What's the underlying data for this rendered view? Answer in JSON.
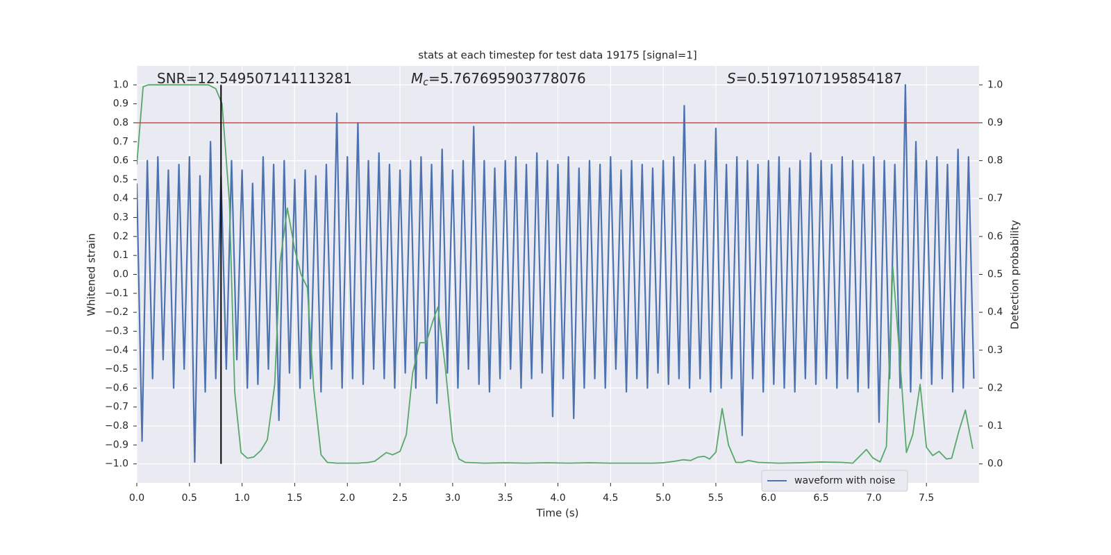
{
  "chart_data": {
    "type": "line",
    "title": "stats at each timestep for test data 19175 [signal=1]",
    "xlabel": "Time (s)",
    "ylabel": "Whitened strain",
    "y2label": "Detection probability",
    "xlim": [
      0,
      8.0
    ],
    "ylim": [
      -1.1,
      1.1
    ],
    "y2lim": [
      -0.05,
      1.05
    ],
    "xticks": [
      {
        "value": 0,
        "label": "0.0"
      },
      0.5,
      {
        "value": 1,
        "label": "1.0"
      },
      1.5,
      {
        "value": 2,
        "label": "2.0"
      },
      2.5,
      {
        "value": 3,
        "label": "3.0"
      },
      3.5,
      {
        "value": 4,
        "label": "4.0"
      },
      4.5,
      {
        "value": 5,
        "label": "5.0"
      },
      5.5,
      {
        "value": 6,
        "label": "6.0"
      },
      6.5,
      {
        "value": 7,
        "label": "7.0"
      },
      7.5
    ],
    "yticks": [
      {
        "value": -1,
        "label": "−1.0"
      },
      {
        "value": -0.9,
        "label": "−0.9"
      },
      {
        "value": -0.8,
        "label": "−0.8"
      },
      {
        "value": -0.7,
        "label": "−0.7"
      },
      {
        "value": -0.6,
        "label": "−0.6"
      },
      {
        "value": -0.5,
        "label": "−0.5"
      },
      {
        "value": -0.4,
        "label": "−0.4"
      },
      {
        "value": -0.3,
        "label": "−0.3"
      },
      {
        "value": -0.2,
        "label": "−0.2"
      },
      {
        "value": -0.1,
        "label": "−0.1"
      },
      {
        "value": 0,
        "label": "0.0"
      },
      0.1,
      0.2,
      0.3,
      0.4,
      0.5,
      0.6,
      0.7,
      0.8,
      0.9,
      {
        "value": 1,
        "label": "1.0"
      }
    ],
    "y2ticks": [
      {
        "value": 0,
        "label": "0.0"
      },
      0.1,
      0.2,
      0.3,
      0.4,
      0.5,
      0.6,
      0.7,
      0.8,
      0.9,
      {
        "value": 1,
        "label": "1.0"
      }
    ],
    "grid": true,
    "legend": "lower right",
    "series": [
      {
        "name": "waveform with noise",
        "color": "#4c72b0",
        "x": [
          0,
          0.05,
          0.1,
          0.15,
          0.2,
          0.25,
          0.3,
          0.35,
          0.4,
          0.45,
          0.5,
          0.55,
          0.6,
          0.65,
          0.7,
          0.75,
          0.8,
          0.85,
          0.9,
          0.95,
          1.0,
          1.05,
          1.1,
          1.15,
          1.2,
          1.25,
          1.3,
          1.35,
          1.4,
          1.45,
          1.5,
          1.55,
          1.6,
          1.65,
          1.7,
          1.75,
          1.8,
          1.85,
          1.9,
          1.95,
          2.0,
          2.05,
          2.1,
          2.15,
          2.2,
          2.25,
          2.3,
          2.35,
          2.4,
          2.45,
          2.5,
          2.55,
          2.6,
          2.65,
          2.7,
          2.75,
          2.8,
          2.85,
          2.9,
          2.95,
          3.0,
          3.05,
          3.1,
          3.15,
          3.2,
          3.25,
          3.3,
          3.35,
          3.4,
          3.45,
          3.5,
          3.55,
          3.6,
          3.65,
          3.7,
          3.75,
          3.8,
          3.85,
          3.9,
          3.95,
          4.0,
          4.05,
          4.1,
          4.15,
          4.2,
          4.25,
          4.3,
          4.35,
          4.4,
          4.45,
          4.5,
          4.55,
          4.6,
          4.65,
          4.7,
          4.75,
          4.8,
          4.85,
          4.9,
          4.95,
          5.0,
          5.05,
          5.1,
          5.15,
          5.2,
          5.25,
          5.3,
          5.35,
          5.4,
          5.45,
          5.5,
          5.55,
          5.6,
          5.65,
          5.7,
          5.75,
          5.8,
          5.85,
          5.9,
          5.95,
          6.0,
          6.05,
          6.1,
          6.15,
          6.2,
          6.25,
          6.3,
          6.35,
          6.4,
          6.45,
          6.5,
          6.55,
          6.6,
          6.65,
          6.7,
          6.75,
          6.8,
          6.85,
          6.9,
          6.95,
          7.0,
          7.05,
          7.1,
          7.15,
          7.2,
          7.25,
          7.3,
          7.35,
          7.4,
          7.45,
          7.5,
          7.55,
          7.6,
          7.65,
          7.7,
          7.75,
          7.8,
          7.85,
          7.9,
          7.95
        ],
        "values": [
          0.48,
          -0.88,
          0.6,
          -0.55,
          0.62,
          -0.45,
          0.55,
          -0.6,
          0.58,
          -0.5,
          0.62,
          -0.99,
          0.52,
          -0.62,
          0.7,
          -0.55,
          0.52,
          -0.5,
          0.6,
          -0.45,
          0.55,
          -0.6,
          0.48,
          -0.58,
          0.62,
          -0.5,
          0.58,
          -0.77,
          0.6,
          -0.52,
          0.5,
          -0.6,
          0.55,
          -0.55,
          0.52,
          -0.62,
          0.58,
          -0.5,
          0.85,
          -0.6,
          0.62,
          -0.55,
          0.8,
          -0.58,
          0.6,
          -0.5,
          0.64,
          -0.55,
          0.58,
          -0.6,
          0.55,
          -0.52,
          0.6,
          -0.6,
          0.62,
          -0.55,
          0.58,
          -0.68,
          0.66,
          -0.52,
          0.55,
          -0.6,
          0.6,
          -0.5,
          0.78,
          -0.58,
          0.6,
          -0.62,
          0.56,
          -0.55,
          0.6,
          -0.5,
          0.62,
          -0.6,
          0.58,
          -0.55,
          0.64,
          -0.52,
          0.6,
          -0.75,
          0.58,
          -0.55,
          0.62,
          -0.76,
          0.56,
          -0.6,
          0.6,
          -0.55,
          0.58,
          -0.6,
          0.62,
          -0.5,
          0.55,
          -0.62,
          0.6,
          -0.55,
          0.58,
          -0.6,
          0.56,
          -0.52,
          0.6,
          -0.58,
          0.62,
          -0.55,
          0.89,
          -0.6,
          0.58,
          -0.55,
          0.6,
          -0.62,
          0.77,
          -0.6,
          0.58,
          -0.55,
          0.62,
          -0.85,
          0.6,
          -0.55,
          0.58,
          -0.62,
          0.6,
          -0.58,
          0.62,
          -0.6,
          0.56,
          -0.62,
          0.6,
          -0.55,
          0.64,
          -0.58,
          0.6,
          -0.55,
          0.58,
          -0.6,
          0.62,
          -0.55,
          0.6,
          -0.62,
          0.58,
          -0.6,
          0.62,
          -0.78,
          0.6,
          -0.55,
          0.58,
          -0.6,
          1.0,
          -0.62,
          0.7,
          -0.55,
          0.6,
          -0.58,
          0.62,
          -0.55,
          0.58,
          -0.62,
          0.66,
          -0.6,
          0.62,
          -0.55
        ]
      },
      {
        "color": "#55a868",
        "axis": "y2",
        "x": [
          0,
          0.06,
          0.11,
          0.2,
          0.3,
          0.4,
          0.5,
          0.6,
          0.68,
          0.75,
          0.81,
          0.88,
          0.93,
          0.99,
          1.05,
          1.11,
          1.18,
          1.24,
          1.31,
          1.36,
          1.43,
          1.5,
          1.56,
          1.62,
          1.68,
          1.75,
          1.81,
          1.9,
          2.0,
          2.1,
          2.2,
          2.26,
          2.37,
          2.43,
          2.5,
          2.56,
          2.62,
          2.69,
          2.75,
          2.81,
          2.86,
          2.93,
          3.0,
          3.06,
          3.12,
          3.3,
          3.5,
          3.7,
          3.9,
          4.1,
          4.3,
          4.5,
          4.7,
          4.9,
          5.0,
          5.11,
          5.19,
          5.26,
          5.33,
          5.39,
          5.44,
          5.5,
          5.56,
          5.62,
          5.69,
          5.75,
          5.81,
          5.9,
          6.1,
          6.3,
          6.5,
          6.7,
          6.8,
          6.93,
          6.99,
          7.06,
          7.12,
          7.18,
          7.25,
          7.31,
          7.37,
          7.44,
          7.5,
          7.56,
          7.62,
          7.69,
          7.74,
          7.81,
          7.87,
          7.94
        ],
        "values": [
          0.79,
          0.995,
          1.0,
          1.0,
          1.0,
          1.0,
          1.0,
          1.0,
          1.0,
          0.99,
          0.95,
          0.69,
          0.19,
          0.03,
          0.015,
          0.018,
          0.036,
          0.064,
          0.21,
          0.53,
          0.675,
          0.566,
          0.5,
          0.465,
          0.2,
          0.024,
          0.004,
          0.002,
          0.002,
          0.002,
          0.004,
          0.007,
          0.03,
          0.024,
          0.033,
          0.077,
          0.24,
          0.32,
          0.32,
          0.375,
          0.414,
          0.255,
          0.06,
          0.013,
          0.004,
          0.002,
          0.003,
          0.002,
          0.003,
          0.002,
          0.003,
          0.002,
          0.002,
          0.002,
          0.003,
          0.007,
          0.011,
          0.009,
          0.018,
          0.02,
          0.013,
          0.031,
          0.146,
          0.05,
          0.004,
          0.004,
          0.009,
          0.004,
          0.002,
          0.003,
          0.005,
          0.004,
          0.002,
          0.038,
          0.016,
          0.005,
          0.046,
          0.52,
          0.27,
          0.03,
          0.077,
          0.21,
          0.044,
          0.022,
          0.033,
          0.013,
          0.015,
          0.088,
          0.142,
          0.04
        ]
      }
    ],
    "hlines": [
      {
        "y": 0.9,
        "axis": "y2",
        "color": "#c44e52"
      }
    ],
    "vlines": [
      {
        "x": 0.8,
        "ymin": -1.0,
        "ymax": 1.0,
        "color": "#000000"
      }
    ],
    "annotations": [
      {
        "text": "SNR=12.549507141113281"
      },
      {
        "symbol": "M",
        "subscript": "c",
        "text": "=5.767695903778076"
      },
      {
        "symbol": "S",
        "text": "=0.5197107195854187"
      }
    ]
  }
}
